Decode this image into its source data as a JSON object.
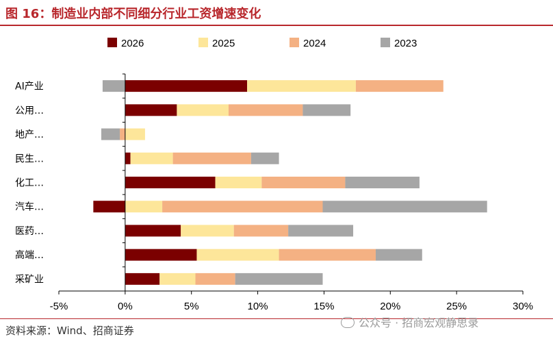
{
  "title": "图 16：制造业内部不同细分行业工资增速变化",
  "source": "资料来源：Wind、招商证券",
  "watermark": "公众号 · 招商宏观静思录",
  "watermark_icon": "wechat-icon",
  "colors": {
    "accent": "#b8262b",
    "s2026": "#7b0000",
    "s2025": "#fde69a",
    "s2024": "#f4b183",
    "s2023": "#a6a6a6"
  },
  "chart_data": {
    "type": "bar",
    "orientation": "horizontal",
    "stacking": "stacked",
    "categories": [
      "AI产业",
      "公用…",
      "地产…",
      "民生…",
      "化工…",
      "汽车…",
      "医药…",
      "高端…",
      "采矿业"
    ],
    "series": [
      {
        "name": "2026",
        "color": "#7b0000",
        "values": [
          9.2,
          3.9,
          0.0,
          0.4,
          6.8,
          -2.4,
          4.2,
          5.4,
          2.6
        ]
      },
      {
        "name": "2025",
        "color": "#fde69a",
        "values": [
          8.2,
          3.9,
          1.5,
          3.2,
          3.5,
          2.8,
          4.0,
          6.2,
          2.7
        ]
      },
      {
        "name": "2024",
        "color": "#f4b183",
        "values": [
          6.6,
          5.6,
          -0.4,
          5.9,
          6.3,
          12.1,
          4.1,
          7.3,
          3.0
        ]
      },
      {
        "name": "2023",
        "color": "#a6a6a6",
        "values": [
          -1.7,
          3.6,
          -1.4,
          2.1,
          5.6,
          12.4,
          4.9,
          3.5,
          6.6
        ]
      }
    ],
    "xlim": [
      -5,
      30
    ],
    "xticks": [
      -5,
      0,
      5,
      10,
      15,
      20,
      25,
      30
    ],
    "xtick_labels": [
      "-5%",
      "0%",
      "5%",
      "10%",
      "15%",
      "20%",
      "25%",
      "30%"
    ],
    "xlabel": "",
    "ylabel": "",
    "legend": "top",
    "grid": false
  }
}
